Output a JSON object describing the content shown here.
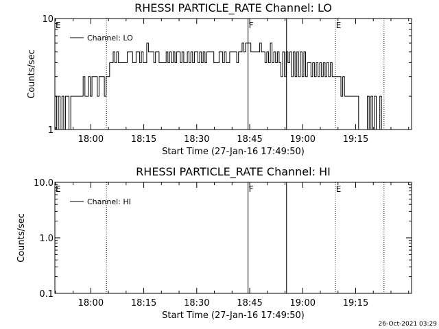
{
  "footer": {
    "timestamp": "26-Oct-2021 03:29"
  },
  "colors": {
    "background": "#ffffff",
    "ink": "#000000"
  },
  "chart_data": [
    {
      "type": "line",
      "title": "RHESSI PARTICLE_RATE Channel: LO",
      "xlabel": "Start Time (27-Jan-16 17:49:50)",
      "ylabel": "Counts/sec",
      "y_scale": "log",
      "ylim": [
        1,
        10
      ],
      "y_ticks": [
        {
          "value": 1,
          "label": "1"
        },
        {
          "value": 10,
          "label": "10"
        }
      ],
      "x_range_minutes": [
        0,
        101
      ],
      "x_ticks": [
        {
          "minute": 10.17,
          "label": "18:00"
        },
        {
          "minute": 25.17,
          "label": "18:15"
        },
        {
          "minute": 40.17,
          "label": "18:30"
        },
        {
          "minute": 55.17,
          "label": "18:45"
        },
        {
          "minute": 70.17,
          "label": "19:00"
        },
        {
          "minute": 85.17,
          "label": "19:15"
        }
      ],
      "legend": {
        "label": "Channel: LO",
        "position": "top-left"
      },
      "markers": [
        {
          "minute": 14.6,
          "label": "",
          "style": "dotted",
          "label_at_left": true,
          "left_label": "E"
        },
        {
          "minute": 54.7,
          "label": "F",
          "style": "solid"
        },
        {
          "minute": 65.6,
          "label": "",
          "style": "solid"
        },
        {
          "minute": 79.4,
          "label": "E",
          "style": "dotted"
        },
        {
          "minute": 93.2,
          "label": "",
          "style": "dotted"
        }
      ],
      "series": [
        {
          "name": "Channel: LO",
          "step_minutes": 0.5,
          "start_minute": 0,
          "values": [
            2,
            1,
            2,
            1,
            2,
            1,
            2,
            2,
            1,
            2,
            2,
            2,
            2,
            2,
            2,
            2,
            3,
            2,
            2,
            3,
            2,
            3,
            3,
            3,
            2,
            3,
            3,
            3,
            2,
            3,
            3,
            4,
            4,
            5,
            4,
            5,
            4,
            4,
            4,
            4,
            4,
            5,
            5,
            5,
            4,
            4,
            5,
            5,
            4,
            5,
            4,
            4,
            6,
            5,
            5,
            5,
            4,
            5,
            5,
            4,
            4,
            4,
            4,
            5,
            4,
            5,
            4,
            5,
            4,
            5,
            5,
            4,
            5,
            4,
            4,
            5,
            4,
            5,
            4,
            5,
            5,
            4,
            5,
            4,
            5,
            4,
            5,
            5,
            5,
            5,
            4,
            4,
            4,
            5,
            5,
            4,
            5,
            4,
            4,
            5,
            5,
            5,
            5,
            4,
            5,
            5,
            6,
            5,
            6,
            6,
            6,
            5,
            5,
            5,
            5,
            5,
            6,
            5,
            5,
            4,
            5,
            4,
            6,
            4,
            5,
            4,
            5,
            4,
            3,
            5,
            3,
            5,
            4,
            5,
            3,
            5,
            3,
            5,
            3,
            5,
            3,
            5,
            3,
            4,
            4,
            3,
            4,
            3,
            4,
            3,
            4,
            3,
            4,
            3,
            4,
            3,
            4,
            3,
            3,
            3,
            3,
            3,
            2,
            3,
            2,
            2,
            2,
            2,
            2,
            2,
            2,
            2,
            1,
            1,
            1,
            1,
            1,
            2,
            1,
            2,
            1,
            2,
            1,
            1,
            2,
            1,
            1,
            1,
            1,
            1,
            1,
            1,
            1
          ]
        }
      ]
    },
    {
      "type": "line",
      "title": "RHESSI PARTICLE_RATE Channel: HI",
      "xlabel": "Start Time (27-Jan-16 17:49:50)",
      "ylabel": "Counts/sec",
      "y_scale": "log",
      "ylim": [
        0.1,
        10
      ],
      "y_ticks": [
        {
          "value": 0.1,
          "label": "0.1"
        },
        {
          "value": 1,
          "label": "1.0"
        },
        {
          "value": 10,
          "label": "10.0"
        }
      ],
      "x_range_minutes": [
        0,
        101
      ],
      "x_ticks": [
        {
          "minute": 10.17,
          "label": "18:00"
        },
        {
          "minute": 25.17,
          "label": "18:15"
        },
        {
          "minute": 40.17,
          "label": "18:30"
        },
        {
          "minute": 55.17,
          "label": "18:45"
        },
        {
          "minute": 70.17,
          "label": "19:00"
        },
        {
          "minute": 85.17,
          "label": "19:15"
        }
      ],
      "legend": {
        "label": "Channel: HI",
        "position": "top-left"
      },
      "markers": [
        {
          "minute": 14.6,
          "label": "",
          "style": "dotted",
          "label_at_left": true,
          "left_label": "E"
        },
        {
          "minute": 54.7,
          "label": "F",
          "style": "solid"
        },
        {
          "minute": 65.6,
          "label": "",
          "style": "solid"
        },
        {
          "minute": 79.4,
          "label": "E",
          "style": "dotted"
        },
        {
          "minute": 93.2,
          "label": "",
          "style": "dotted"
        }
      ],
      "series": []
    }
  ]
}
